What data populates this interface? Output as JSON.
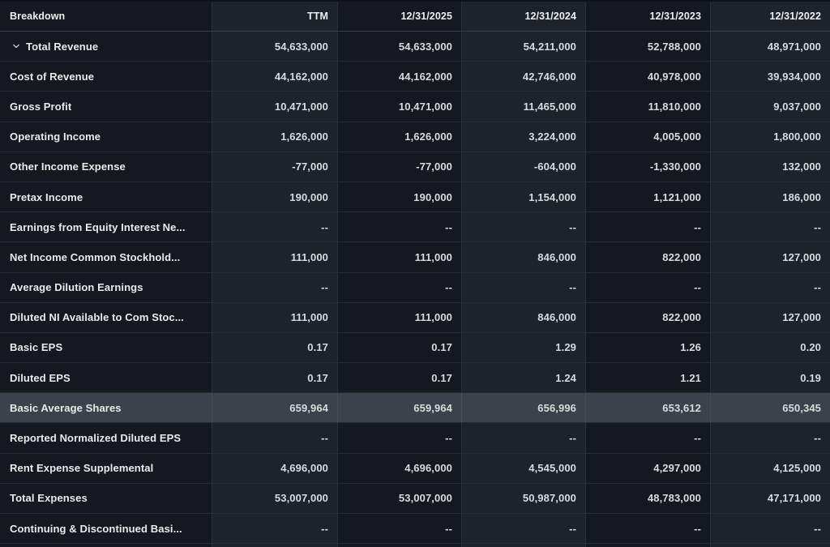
{
  "colors": {
    "background": "#15191f",
    "column_stripe": "#1e232b",
    "row_highlight": "#3b424b",
    "row_border": "#262c33",
    "column_border": "#2b313a",
    "header_border": "#373e46",
    "label_text": "#e8eaec",
    "value_text": "#d8dbde",
    "header_text": "#eceef0"
  },
  "icons": {
    "expand_icon": "chevron-down-icon"
  },
  "table": {
    "columns": [
      {
        "label": "Breakdown"
      },
      {
        "label": "TTM"
      },
      {
        "label": "12/31/2025"
      },
      {
        "label": "12/31/2024"
      },
      {
        "label": "12/31/2023"
      },
      {
        "label": "12/31/2022"
      }
    ],
    "rows": [
      {
        "label": "Total Revenue",
        "expandable": true,
        "highlighted": false,
        "values": [
          "54,633,000",
          "54,633,000",
          "54,211,000",
          "52,788,000",
          "48,971,000"
        ]
      },
      {
        "label": "Cost of Revenue",
        "expandable": false,
        "highlighted": false,
        "values": [
          "44,162,000",
          "44,162,000",
          "42,746,000",
          "40,978,000",
          "39,934,000"
        ]
      },
      {
        "label": "Gross Profit",
        "expandable": false,
        "highlighted": false,
        "values": [
          "10,471,000",
          "10,471,000",
          "11,465,000",
          "11,810,000",
          "9,037,000"
        ]
      },
      {
        "label": "Operating Income",
        "expandable": false,
        "highlighted": false,
        "values": [
          "1,626,000",
          "1,626,000",
          "3,224,000",
          "4,005,000",
          "1,800,000"
        ]
      },
      {
        "label": "Other Income Expense",
        "expandable": false,
        "highlighted": false,
        "values": [
          "-77,000",
          "-77,000",
          "-604,000",
          "-1,330,000",
          "132,000"
        ]
      },
      {
        "label": "Pretax Income",
        "expandable": false,
        "highlighted": false,
        "values": [
          "190,000",
          "190,000",
          "1,154,000",
          "1,121,000",
          "186,000"
        ]
      },
      {
        "label": "Earnings from Equity Interest Ne...",
        "expandable": false,
        "highlighted": false,
        "values": [
          "--",
          "--",
          "--",
          "--",
          "--"
        ]
      },
      {
        "label": "Net Income Common Stockhold...",
        "expandable": false,
        "highlighted": false,
        "values": [
          "111,000",
          "111,000",
          "846,000",
          "822,000",
          "127,000"
        ]
      },
      {
        "label": "Average Dilution Earnings",
        "expandable": false,
        "highlighted": false,
        "values": [
          "--",
          "--",
          "--",
          "--",
          "--"
        ]
      },
      {
        "label": "Diluted NI Available to Com Stoc...",
        "expandable": false,
        "highlighted": false,
        "values": [
          "111,000",
          "111,000",
          "846,000",
          "822,000",
          "127,000"
        ]
      },
      {
        "label": "Basic EPS",
        "expandable": false,
        "highlighted": false,
        "values": [
          "0.17",
          "0.17",
          "1.29",
          "1.26",
          "0.20"
        ]
      },
      {
        "label": "Diluted EPS",
        "expandable": false,
        "highlighted": false,
        "values": [
          "0.17",
          "0.17",
          "1.24",
          "1.21",
          "0.19"
        ]
      },
      {
        "label": "Basic Average Shares",
        "expandable": false,
        "highlighted": true,
        "values": [
          "659,964",
          "659,964",
          "656,996",
          "653,612",
          "650,345"
        ]
      },
      {
        "label": "Reported Normalized Diluted EPS",
        "expandable": false,
        "highlighted": false,
        "values": [
          "--",
          "--",
          "--",
          "--",
          "--"
        ]
      },
      {
        "label": "Rent Expense Supplemental",
        "expandable": false,
        "highlighted": false,
        "values": [
          "4,696,000",
          "4,696,000",
          "4,545,000",
          "4,297,000",
          "4,125,000"
        ]
      },
      {
        "label": "Total Expenses",
        "expandable": false,
        "highlighted": false,
        "values": [
          "53,007,000",
          "53,007,000",
          "50,987,000",
          "48,783,000",
          "47,171,000"
        ]
      },
      {
        "label": "Continuing & Discontinued Basi...",
        "expandable": false,
        "highlighted": false,
        "values": [
          "--",
          "--",
          "--",
          "--",
          "--"
        ]
      },
      {
        "label": "",
        "expandable": false,
        "highlighted": false,
        "values": [
          "",
          "",
          "",
          "",
          ""
        ]
      }
    ]
  }
}
